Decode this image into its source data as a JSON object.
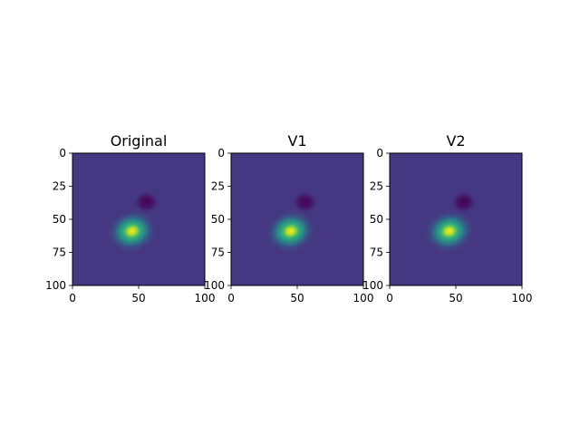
{
  "chart_data": [
    {
      "type": "heatmap",
      "title": "Original",
      "xlim": [
        0,
        100
      ],
      "ylim": [
        100,
        0
      ],
      "xticks": [
        "0",
        "50",
        "100"
      ],
      "yticks": [
        "0",
        "25",
        "50",
        "75",
        "100"
      ],
      "grid": false,
      "colormap": "viridis",
      "features": [
        {
          "kind": "peak",
          "x": 45,
          "y": 59,
          "relative_level": 1.0
        },
        {
          "kind": "trough",
          "x": 56,
          "y": 37,
          "relative_level": -0.35
        }
      ]
    },
    {
      "type": "heatmap",
      "title": "V1",
      "xlim": [
        0,
        100
      ],
      "ylim": [
        100,
        0
      ],
      "xticks": [
        "0",
        "50",
        "100"
      ],
      "yticks": [
        "0",
        "25",
        "50",
        "75",
        "100"
      ],
      "grid": false,
      "colormap": "viridis",
      "features": [
        {
          "kind": "peak",
          "x": 45,
          "y": 59,
          "relative_level": 1.0
        },
        {
          "kind": "trough",
          "x": 56,
          "y": 37,
          "relative_level": -0.35
        }
      ]
    },
    {
      "type": "heatmap",
      "title": "V2",
      "xlim": [
        0,
        100
      ],
      "ylim": [
        100,
        0
      ],
      "xticks": [
        "0",
        "50",
        "100"
      ],
      "yticks": [
        "0",
        "25",
        "50",
        "75",
        "100"
      ],
      "grid": false,
      "colormap": "viridis",
      "features": [
        {
          "kind": "peak",
          "x": 45,
          "y": 59,
          "relative_level": 1.0
        },
        {
          "kind": "trough",
          "x": 56,
          "y": 37,
          "relative_level": -0.35
        }
      ]
    }
  ],
  "colors": {
    "background": "#453781",
    "peak": "#fde725",
    "trough": "#440154"
  }
}
